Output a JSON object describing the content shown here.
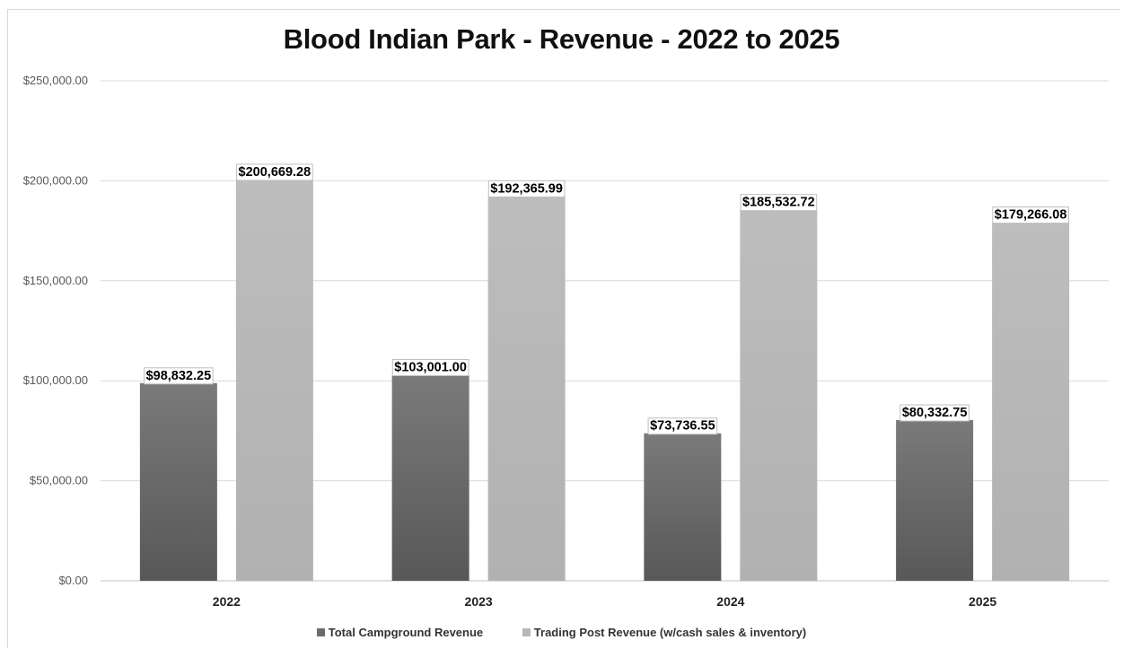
{
  "chart_data": {
    "type": "bar",
    "title": "Blood Indian Park - Revenue - 2022 to 2025",
    "categories": [
      "2022",
      "2023",
      "2024",
      "2025"
    ],
    "series": [
      {
        "name": "Total Campground Revenue",
        "color": "#6b6b6b",
        "values": [
          98832.25,
          103001.0,
          73736.55,
          80332.75
        ],
        "labels": [
          "$98,832.25",
          "$103,001.00",
          "$73,736.55",
          "$80,332.75"
        ]
      },
      {
        "name": "Trading Post Revenue (w/cash sales & inventory)",
        "color": "#b8b8b8",
        "values": [
          200669.28,
          192365.99,
          185532.72,
          179266.08
        ],
        "labels": [
          "$200,669.28",
          "$192,365.99",
          "$185,532.72",
          "$179,266.08"
        ]
      }
    ],
    "ylim": [
      0,
      250000
    ],
    "yticks": [
      0,
      50000,
      100000,
      150000,
      200000,
      250000
    ],
    "ytick_labels": [
      "$0.00",
      "$50,000.00",
      "$100,000.00",
      "$150,000.00",
      "$200,000.00",
      "$250,000.00"
    ],
    "xlabel": "",
    "ylabel": "",
    "grid": true,
    "legend_position": "bottom"
  }
}
